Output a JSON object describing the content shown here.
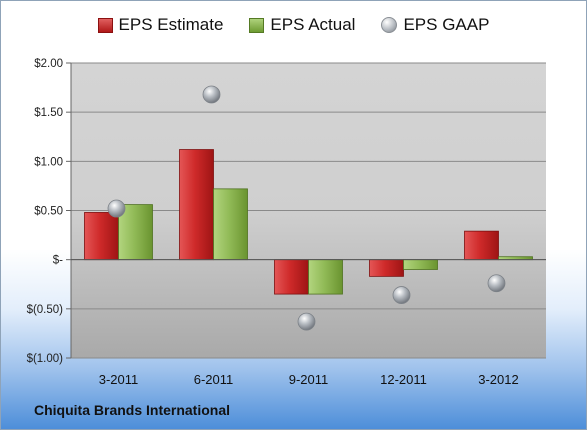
{
  "legend": {
    "estimate": "EPS Estimate",
    "actual": "EPS Actual",
    "gaap": "EPS GAAP"
  },
  "company_name": "Chiquita Brands International",
  "colors": {
    "estimate": "#c42424",
    "actual": "#8cb552",
    "gaap": "#a9aeb4",
    "plot_background": "#d0d0d0"
  },
  "chart_data": {
    "type": "bar",
    "title": "",
    "xlabel": "",
    "ylabel": "",
    "categories": [
      "3-2011",
      "6-2011",
      "9-2011",
      "12-2011",
      "3-2012"
    ],
    "series": [
      {
        "name": "EPS Estimate",
        "type": "bar",
        "values": [
          0.48,
          1.12,
          -0.35,
          -0.17,
          0.29
        ]
      },
      {
        "name": "EPS Actual",
        "type": "bar",
        "values": [
          0.56,
          0.72,
          -0.35,
          -0.1,
          0.03
        ]
      },
      {
        "name": "EPS GAAP",
        "type": "scatter",
        "values": [
          0.52,
          1.68,
          -0.63,
          -0.36,
          -0.24
        ]
      }
    ],
    "ylim": [
      -1.0,
      2.0
    ],
    "y_ticks": [
      2.0,
      1.5,
      1.0,
      0.5,
      0.0,
      -0.5,
      -1.0
    ],
    "y_tick_labels": [
      "$2.00",
      "$1.50",
      "$1.00",
      "$0.50",
      "$-",
      "$(0.50)",
      "$(1.00)"
    ],
    "grid": true,
    "legend_position": "top"
  }
}
